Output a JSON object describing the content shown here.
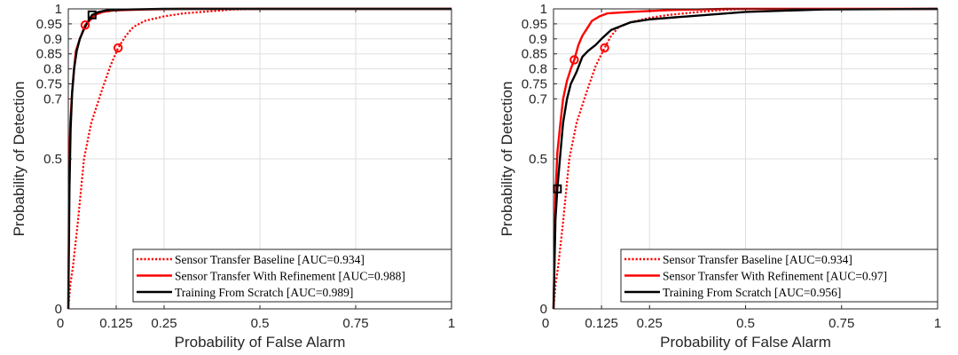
{
  "colors": {
    "red": "#ff0000",
    "black": "#000000",
    "grid": "#dfdfdf",
    "axis": "#262626"
  },
  "chart_data": [
    {
      "type": "line",
      "xlabel": "Probability of False Alarm",
      "ylabel": "Probability of Detection",
      "xlim": [
        0,
        1
      ],
      "ylim": [
        0,
        1
      ],
      "xticks": [
        0,
        0.125,
        0.25,
        0.5,
        0.75,
        1
      ],
      "xtick_labels": [
        "0",
        "0.125",
        "0.25",
        "0.5",
        "0.75",
        "1"
      ],
      "yticks": [
        0,
        0.5,
        0.7,
        0.75,
        0.8,
        0.85,
        0.9,
        0.95,
        1
      ],
      "ytick_labels": [
        "0",
        "0.5",
        "0.7",
        "0.75",
        "0.8",
        "0.85",
        "0.9",
        "0.95",
        "1"
      ],
      "grid": true,
      "legend_position": "bottom-right",
      "series": [
        {
          "name": "Sensor Transfer Baseline [AUC=0.934]",
          "style": "dotted",
          "color": "#ff0000",
          "x": [
            0,
            0.005,
            0.012,
            0.025,
            0.041,
            0.06,
            0.088,
            0.11,
            0.13,
            0.15,
            0.17,
            0.2,
            0.25,
            0.3,
            0.38,
            0.43,
            0.5,
            1
          ],
          "y": [
            0,
            0.08,
            0.14,
            0.29,
            0.5,
            0.62,
            0.73,
            0.81,
            0.87,
            0.91,
            0.94,
            0.96,
            0.975,
            0.985,
            0.993,
            0.998,
            1,
            1
          ],
          "marker": {
            "x": 0.13,
            "y": 0.87,
            "shape": "circle"
          }
        },
        {
          "name": "Sensor Transfer With Refinement [AUC=0.988]",
          "style": "solid",
          "color": "#ff0000",
          "x": [
            0,
            0.002,
            0.005,
            0.01,
            0.015,
            0.02,
            0.03,
            0.044,
            0.055,
            0.07,
            0.09,
            0.12,
            0.2,
            0.3,
            1
          ],
          "y": [
            0,
            0.45,
            0.62,
            0.72,
            0.8,
            0.86,
            0.9,
            0.946,
            0.96,
            0.98,
            0.99,
            0.995,
            0.998,
            1,
            1
          ],
          "marker": {
            "x": 0.044,
            "y": 0.946,
            "shape": "circle"
          }
        },
        {
          "name": "Training From Scratch [AUC=0.989]",
          "style": "solid",
          "color": "#000000",
          "x": [
            0,
            0.003,
            0.006,
            0.01,
            0.015,
            0.022,
            0.03,
            0.04,
            0.05,
            0.062,
            0.08,
            0.1,
            0.15,
            0.25,
            0.5,
            1
          ],
          "y": [
            0,
            0.4,
            0.6,
            0.72,
            0.8,
            0.86,
            0.9,
            0.93,
            0.955,
            0.98,
            0.99,
            0.995,
            0.998,
            1,
            1,
            1
          ],
          "marker": {
            "x": 0.062,
            "y": 0.98,
            "shape": "square"
          }
        }
      ]
    },
    {
      "type": "line",
      "xlabel": "Probability of False Alarm",
      "ylabel": "Probability of Detection",
      "xlim": [
        0,
        1
      ],
      "ylim": [
        0,
        1
      ],
      "xticks": [
        0,
        0.125,
        0.25,
        0.5,
        0.75,
        1
      ],
      "xtick_labels": [
        "0",
        "0.125",
        "0.25",
        "0.5",
        "0.75",
        "1"
      ],
      "yticks": [
        0,
        0.5,
        0.7,
        0.75,
        0.8,
        0.85,
        0.9,
        0.95,
        1
      ],
      "ytick_labels": [
        "0",
        "0.5",
        "0.7",
        "0.75",
        "0.8",
        "0.85",
        "0.9",
        "0.95",
        "1"
      ],
      "grid": true,
      "legend_position": "bottom-right",
      "series": [
        {
          "name": "Sensor Transfer Baseline [AUC=0.934]",
          "style": "dotted",
          "color": "#ff0000",
          "x": [
            0,
            0.005,
            0.012,
            0.025,
            0.041,
            0.06,
            0.088,
            0.11,
            0.133,
            0.15,
            0.17,
            0.2,
            0.25,
            0.3,
            0.38,
            0.45,
            0.5,
            1
          ],
          "y": [
            0,
            0.08,
            0.14,
            0.29,
            0.5,
            0.62,
            0.73,
            0.81,
            0.87,
            0.91,
            0.94,
            0.955,
            0.97,
            0.98,
            0.99,
            0.997,
            1,
            1
          ],
          "marker": {
            "x": 0.133,
            "y": 0.87,
            "shape": "circle"
          }
        },
        {
          "name": "Sensor Transfer With Refinement [AUC=0.97]",
          "style": "solid",
          "color": "#ff0000",
          "x": [
            0,
            0.005,
            0.01,
            0.018,
            0.025,
            0.035,
            0.045,
            0.054,
            0.065,
            0.075,
            0.09,
            0.1,
            0.12,
            0.14,
            0.2,
            0.3,
            0.45,
            1
          ],
          "y": [
            0,
            0.38,
            0.52,
            0.62,
            0.7,
            0.76,
            0.8,
            0.83,
            0.88,
            0.91,
            0.94,
            0.96,
            0.975,
            0.985,
            0.99,
            0.996,
            1,
            1
          ],
          "marker": {
            "x": 0.054,
            "y": 0.83,
            "shape": "circle"
          }
        },
        {
          "name": "Training From Scratch [AUC=0.956]",
          "style": "solid",
          "color": "#000000",
          "x": [
            0,
            0.005,
            0.01,
            0.018,
            0.025,
            0.035,
            0.045,
            0.06,
            0.075,
            0.09,
            0.11,
            0.125,
            0.15,
            0.2,
            0.25,
            0.35,
            0.5,
            0.7,
            1
          ],
          "y": [
            0,
            0.3,
            0.4,
            0.52,
            0.62,
            0.7,
            0.75,
            0.79,
            0.84,
            0.86,
            0.88,
            0.9,
            0.93,
            0.955,
            0.965,
            0.975,
            0.99,
            0.998,
            1
          ],
          "marker": {
            "x": 0.01,
            "y": 0.4,
            "shape": "square"
          }
        }
      ]
    }
  ]
}
